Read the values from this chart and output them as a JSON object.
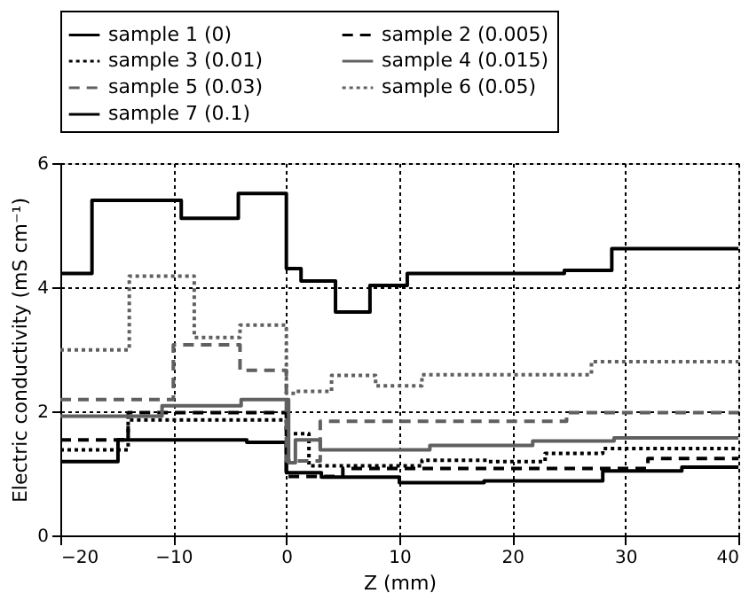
{
  "chart_data": {
    "type": "step",
    "xlabel": "Z (mm)",
    "ylabel": "Electric conductivity (mS cm⁻¹)",
    "xlim": [
      -20,
      40
    ],
    "xticks": [
      -20,
      -10,
      0,
      10,
      20,
      30,
      40
    ],
    "ylim": [
      0,
      6
    ],
    "yticks": [
      0,
      2,
      4,
      6
    ],
    "grid": true,
    "legend": "top",
    "marker": "none",
    "series": [
      {
        "name": "sample 1 (0)",
        "color": "#000000",
        "line_style": "solid",
        "x": [
          -20,
          -14.9,
          -3.5,
          0,
          3.1,
          10,
          17.5,
          28,
          35,
          40
        ],
        "values": [
          1.19,
          1.54,
          1.5,
          1.01,
          0.94,
          0.85,
          0.88,
          1.04,
          1.1,
          1.1
        ]
      },
      {
        "name": "sample 2 (0.005)",
        "color": "#000000",
        "line_style": "dashed",
        "x": [
          -20,
          -14,
          0,
          5,
          32,
          40
        ],
        "values": [
          1.54,
          1.98,
          0.95,
          1.08,
          1.24,
          1.24
        ]
      },
      {
        "name": "sample 3 (0.01)",
        "color": "#000000",
        "line_style": "dotted",
        "x": [
          -20,
          -14,
          0,
          2,
          12,
          17.8,
          22.9,
          28,
          40
        ],
        "values": [
          1.38,
          1.86,
          1.64,
          1.12,
          1.21,
          1.19,
          1.32,
          1.4,
          1.4
        ]
      },
      {
        "name": "sample 4 (0.015)",
        "color": "#606060",
        "line_style": "solid",
        "x": [
          -20,
          -11,
          -4,
          0.2,
          0.8,
          3,
          12.7,
          21.8,
          29,
          40
        ],
        "values": [
          1.92,
          2.09,
          2.19,
          1.17,
          1.54,
          1.38,
          1.45,
          1.52,
          1.57,
          1.57
        ]
      },
      {
        "name": "sample 5 (0.03)",
        "color": "#606060",
        "line_style": "dashed",
        "x": [
          -20,
          -10,
          -4.1,
          0,
          3,
          24.8,
          40
        ],
        "values": [
          2.19,
          3.07,
          2.66,
          1.2,
          1.84,
          1.98,
          1.98
        ]
      },
      {
        "name": "sample 6 (0.05)",
        "color": "#606060",
        "line_style": "dotted",
        "x": [
          -20,
          -13.9,
          -8.15,
          -4.1,
          0,
          0.8,
          4,
          7.9,
          12,
          27,
          40
        ],
        "values": [
          2.99,
          4.18,
          3.19,
          3.39,
          2.29,
          2.32,
          2.58,
          2.41,
          2.59,
          2.8,
          2.8
        ]
      },
      {
        "name": "sample 7 (0.1)",
        "color": "#000000",
        "line_style": "solid",
        "x": [
          -20,
          -17.2,
          -9.3,
          -4.25,
          0,
          1.3,
          4.35,
          7.4,
          10.7,
          24.6,
          28.8,
          40
        ],
        "values": [
          4.22,
          5.4,
          5.11,
          5.51,
          4.3,
          4.1,
          3.6,
          4.03,
          4.22,
          4.27,
          4.62,
          4.62
        ]
      }
    ]
  }
}
